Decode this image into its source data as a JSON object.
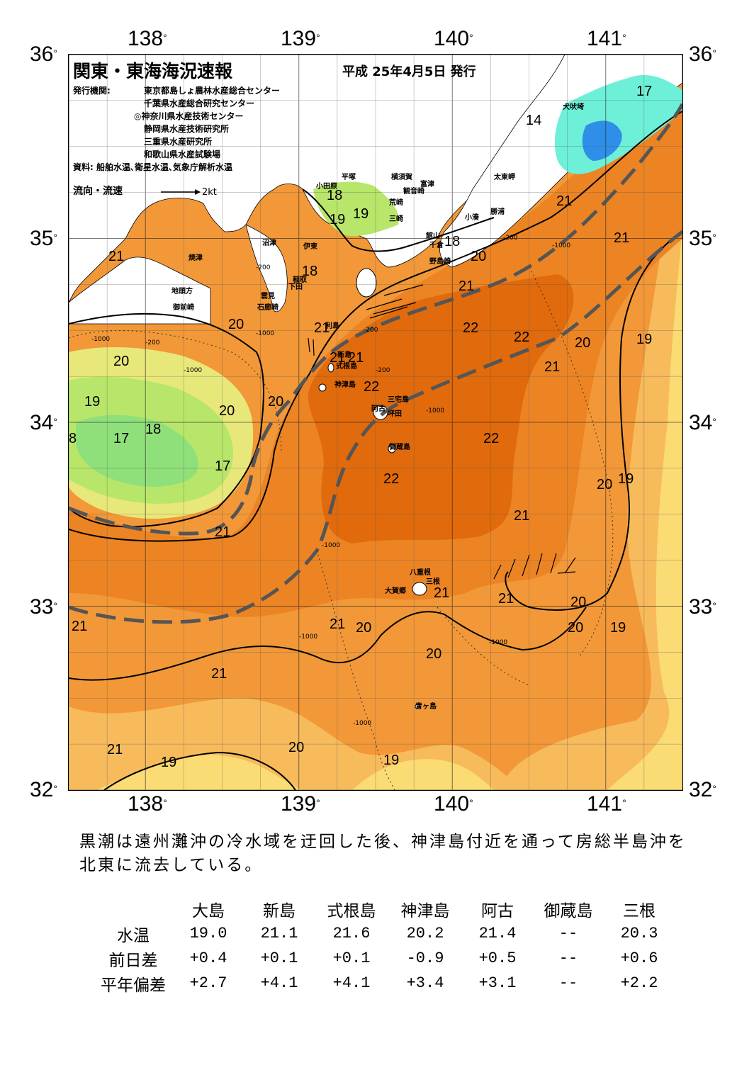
{
  "header": {
    "title": "関東・東海海況速報",
    "issue_date": "平成 25年4月5日 発行",
    "issuer_label": "発行機関:",
    "issuers": [
      "東京都島しょ農林水産総合センター",
      "千葉県水産総合研究センター",
      "◎神奈川県水産技術センター",
      "静岡県水産技術研究所",
      "三重県水産研究所",
      "和歌山県水産試験場"
    ],
    "source": "資料: 船舶水温､衛星水温､気象庁解析水温",
    "flow_legend_label": "流向・流速",
    "flow_legend_unit": "2kt"
  },
  "axes": {
    "lon_ticks": [
      "138",
      "139",
      "140",
      "141"
    ],
    "lat_ticks": [
      "36",
      "35",
      "34",
      "33",
      "32"
    ],
    "degree_symbol": "°"
  },
  "map": {
    "temperature_labels": [
      {
        "t": "17",
        "lon": 141.2,
        "lat": 35.84
      },
      {
        "t": "14",
        "lon": 140.48,
        "lat": 35.68
      },
      {
        "t": "21",
        "lon": 140.68,
        "lat": 35.24
      },
      {
        "t": "21",
        "lon": 141.05,
        "lat": 35.04
      },
      {
        "t": "20",
        "lon": 140.12,
        "lat": 34.94
      },
      {
        "t": "21",
        "lon": 140.04,
        "lat": 34.78
      },
      {
        "t": "18",
        "lon": 139.95,
        "lat": 35.02
      },
      {
        "t": "21",
        "lon": 137.76,
        "lat": 34.94
      },
      {
        "t": "18",
        "lon": 139.02,
        "lat": 34.86
      },
      {
        "t": "19",
        "lon": 139.2,
        "lat": 35.14
      },
      {
        "t": "19",
        "lon": 139.35,
        "lat": 35.17
      },
      {
        "t": "18",
        "lon": 139.18,
        "lat": 35.27
      },
      {
        "t": "20",
        "lon": 138.54,
        "lat": 34.57
      },
      {
        "t": "21",
        "lon": 139.1,
        "lat": 34.55
      },
      {
        "t": "22",
        "lon": 140.07,
        "lat": 34.55
      },
      {
        "t": "22",
        "lon": 140.4,
        "lat": 34.5
      },
      {
        "t": "20",
        "lon": 140.8,
        "lat": 34.47
      },
      {
        "t": "19",
        "lon": 141.2,
        "lat": 34.49
      },
      {
        "t": "21",
        "lon": 139.2,
        "lat": 34.39
      },
      {
        "t": "21",
        "lon": 139.32,
        "lat": 34.39
      },
      {
        "t": "20",
        "lon": 137.79,
        "lat": 34.37
      },
      {
        "t": "21",
        "lon": 140.6,
        "lat": 34.34
      },
      {
        "t": "22",
        "lon": 139.42,
        "lat": 34.23
      },
      {
        "t": "20",
        "lon": 138.8,
        "lat": 34.15
      },
      {
        "t": "19",
        "lon": 137.6,
        "lat": 34.15
      },
      {
        "t": "20",
        "lon": 138.48,
        "lat": 34.1
      },
      {
        "t": "18",
        "lon": 138.0,
        "lat": 34.0
      },
      {
        "t": "17",
        "lon": 137.79,
        "lat": 33.95
      },
      {
        "t": "8",
        "lon": 137.5,
        "lat": 33.95
      },
      {
        "t": "22",
        "lon": 140.2,
        "lat": 33.95
      },
      {
        "t": "17",
        "lon": 138.45,
        "lat": 33.8
      },
      {
        "t": "22",
        "lon": 139.55,
        "lat": 33.73
      },
      {
        "t": "20",
        "lon": 140.94,
        "lat": 33.7
      },
      {
        "t": "19",
        "lon": 141.08,
        "lat": 33.73
      },
      {
        "t": "21",
        "lon": 140.4,
        "lat": 33.53
      },
      {
        "t": "21",
        "lon": 138.45,
        "lat": 33.44
      },
      {
        "t": "21",
        "lon": 139.88,
        "lat": 33.11
      },
      {
        "t": "21",
        "lon": 140.3,
        "lat": 33.08
      },
      {
        "t": "20",
        "lon": 140.77,
        "lat": 33.06
      },
      {
        "t": "21",
        "lon": 137.52,
        "lat": 32.93
      },
      {
        "t": "21",
        "lon": 139.2,
        "lat": 32.94
      },
      {
        "t": "20",
        "lon": 139.37,
        "lat": 32.92
      },
      {
        "t": "20",
        "lon": 140.75,
        "lat": 32.92
      },
      {
        "t": "19",
        "lon": 141.03,
        "lat": 32.92
      },
      {
        "t": "20",
        "lon": 139.83,
        "lat": 32.78
      },
      {
        "t": "21",
        "lon": 138.43,
        "lat": 32.67
      },
      {
        "t": "21",
        "lon": 137.75,
        "lat": 32.26
      },
      {
        "t": "20",
        "lon": 138.93,
        "lat": 32.27
      },
      {
        "t": "19",
        "lon": 138.1,
        "lat": 32.19
      },
      {
        "t": "19",
        "lon": 139.55,
        "lat": 32.2
      }
    ],
    "place_labels": [
      {
        "t": "犬吠埼",
        "lon": 140.72,
        "lat": 35.73
      },
      {
        "t": "太東岬",
        "lon": 140.27,
        "lat": 35.35
      },
      {
        "t": "勝浦",
        "lon": 140.25,
        "lat": 35.16
      },
      {
        "t": "小湊",
        "lon": 140.08,
        "lat": 35.13
      },
      {
        "t": "富津",
        "lon": 139.79,
        "lat": 35.31
      },
      {
        "t": "横須賀",
        "lon": 139.6,
        "lat": 35.35
      },
      {
        "t": "観音崎",
        "lon": 139.68,
        "lat": 35.27
      },
      {
        "t": "平塚",
        "lon": 139.28,
        "lat": 35.35
      },
      {
        "t": "荒崎",
        "lon": 139.59,
        "lat": 35.21
      },
      {
        "t": "三崎",
        "lon": 139.59,
        "lat": 35.12
      },
      {
        "t": "小田原",
        "lon": 139.11,
        "lat": 35.3
      },
      {
        "t": "館山",
        "lon": 139.83,
        "lat": 35.03
      },
      {
        "t": "千倉",
        "lon": 139.85,
        "lat": 34.98
      },
      {
        "t": "野島崎",
        "lon": 139.85,
        "lat": 34.89
      },
      {
        "t": "焼津",
        "lon": 138.28,
        "lat": 34.91
      },
      {
        "t": "沼津",
        "lon": 138.76,
        "lat": 34.99
      },
      {
        "t": "伊東",
        "lon": 139.03,
        "lat": 34.97
      },
      {
        "t": "稲取",
        "lon": 138.96,
        "lat": 34.79
      },
      {
        "t": "下田",
        "lon": 138.93,
        "lat": 34.75
      },
      {
        "t": "雲見",
        "lon": 138.75,
        "lat": 34.7
      },
      {
        "t": "石廊崎",
        "lon": 138.73,
        "lat": 34.64
      },
      {
        "t": "地頭方",
        "lon": 138.17,
        "lat": 34.73
      },
      {
        "t": "御前崎",
        "lon": 138.18,
        "lat": 34.64
      },
      {
        "t": "利島",
        "lon": 139.17,
        "lat": 34.54
      },
      {
        "t": "新島",
        "lon": 139.25,
        "lat": 34.38
      },
      {
        "t": "式根島",
        "lon": 139.24,
        "lat": 34.32
      },
      {
        "t": "神津島",
        "lon": 139.23,
        "lat": 34.22
      },
      {
        "t": "三宅島",
        "lon": 139.58,
        "lat": 34.14
      },
      {
        "t": "阿古",
        "lon": 139.47,
        "lat": 34.09
      },
      {
        "t": "坪田",
        "lon": 139.58,
        "lat": 34.06
      },
      {
        "t": "御蔵島",
        "lon": 139.59,
        "lat": 33.88
      },
      {
        "t": "八重根",
        "lon": 139.72,
        "lat": 33.2
      },
      {
        "t": "三根",
        "lon": 139.83,
        "lat": 33.15
      },
      {
        "t": "大賀郷",
        "lon": 139.56,
        "lat": 33.1
      },
      {
        "t": "青ヶ島",
        "lon": 139.76,
        "lat": 32.47
      }
    ],
    "isobath_labels": [
      {
        "t": "-1000",
        "lon": 137.65,
        "lat": 34.47
      },
      {
        "t": "-200",
        "lon": 138.0,
        "lat": 34.45
      },
      {
        "t": "-1000",
        "lon": 138.25,
        "lat": 34.3
      },
      {
        "t": "-1000",
        "lon": 138.72,
        "lat": 34.5
      },
      {
        "t": "-200",
        "lon": 138.72,
        "lat": 34.86
      },
      {
        "t": "-1000",
        "lon": 140.65,
        "lat": 34.98
      },
      {
        "t": "-200",
        "lon": 140.33,
        "lat": 35.02
      },
      {
        "t": "-1000",
        "lon": 139.83,
        "lat": 34.08
      },
      {
        "t": "-1000",
        "lon": 139.15,
        "lat": 33.35
      },
      {
        "t": "-1000",
        "lon": 140.24,
        "lat": 32.82
      },
      {
        "t": "-1000",
        "lon": 139.0,
        "lat": 32.85
      },
      {
        "t": "-1000",
        "lon": 139.35,
        "lat": 32.38
      },
      {
        "t": "-200",
        "lon": 139.42,
        "lat": 34.52
      },
      {
        "t": "-200",
        "lon": 139.5,
        "lat": 34.3
      }
    ]
  },
  "description": "黒潮は遠州灘沖の冷水域を迂回した後、神津島付近を通って房総半島沖を北東に流去している。",
  "observations": {
    "stations": [
      "大島",
      "新島",
      "式根島",
      "神津島",
      "阿古",
      "御蔵島",
      "三根"
    ],
    "rows": [
      {
        "label": "水温",
        "values": [
          "19.0",
          "21.1",
          "21.6",
          "20.2",
          "21.4",
          "--",
          "20.3"
        ]
      },
      {
        "label": "前日差",
        "values": [
          "+0.4",
          "+0.1",
          "+0.1",
          "-0.9",
          "+0.5",
          "--",
          "+0.6"
        ]
      },
      {
        "label": "平年偏差",
        "values": [
          "+2.7",
          "+4.1",
          "+4.1",
          "+3.4",
          "+3.1",
          "--",
          "+2.2"
        ]
      }
    ]
  },
  "colors": {
    "warm22": "#e06a0c",
    "warm21": "#ec8424",
    "warm20": "#f29838",
    "warm19": "#f7bb5c",
    "cool19": "#fadb74",
    "cool18": "#e8e87a",
    "cool17": "#b8e66a",
    "green": "#8fe07a",
    "cyan": "#6ef0d8",
    "blue14": "#2f8fe8",
    "kuroshio": "#555555"
  }
}
